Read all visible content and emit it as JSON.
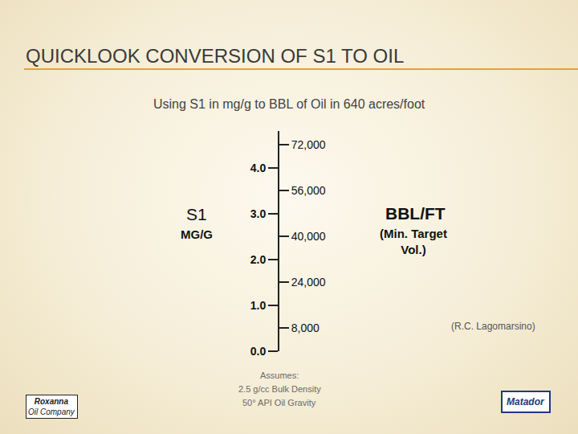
{
  "chart_data": {
    "type": "nomogram",
    "title": "QUICKLOOK CONVERSION OF S1 TO OIL",
    "subtitle": "Using S1 in mg/g to BBL of Oil in 640 acres/foot",
    "ylabel": [
      "S1",
      "MG/G"
    ],
    "y2label": [
      "BBL/FT",
      "(Min. Target Vol.)"
    ],
    "ylim": [
      0,
      4.8
    ],
    "yticks": [
      {
        "value": 0,
        "label": "0.0"
      },
      {
        "value": 1,
        "label": "1.0"
      },
      {
        "value": 2,
        "label": "2.0"
      },
      {
        "value": 3,
        "label": "3.0"
      },
      {
        "value": 4,
        "label": "4.0"
      }
    ],
    "y2lim": [
      0,
      76800
    ],
    "y2ticks": [
      {
        "value": 8000,
        "label": "8,000"
      },
      {
        "value": 24000,
        "label": "24,000"
      },
      {
        "value": 40000,
        "label": "40,000"
      },
      {
        "value": 56000,
        "label": "56,000"
      },
      {
        "value": 72000,
        "label": "72,000"
      }
    ],
    "notes": [
      "Assumes:",
      "2.5 g/cc Bulk Density",
      "50° API Oil Gravity"
    ],
    "credit": "(R.C. Lagomarsino)",
    "logos": [
      [
        "Roxanna",
        "Oil Company"
      ],
      [
        "Matador"
      ]
    ]
  }
}
